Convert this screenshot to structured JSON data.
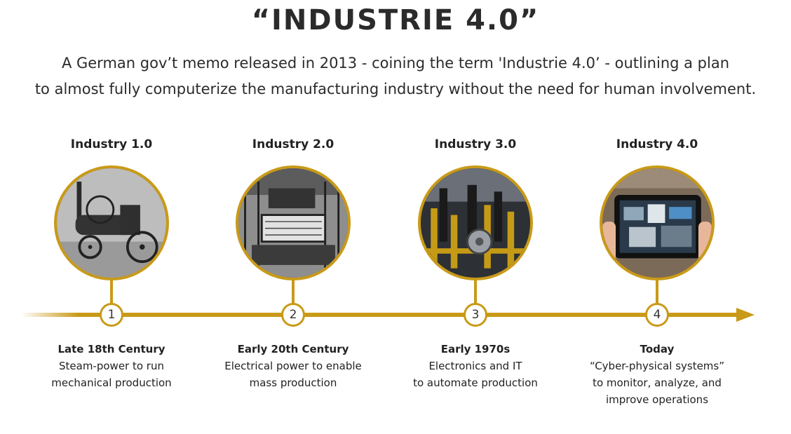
{
  "header": {
    "title": "“INDUSTRIE 4.0”",
    "subtitle_line1": "A German gov’t memo released in 2013 - coining the term 'Industrie 4.0’ - outlining a plan",
    "subtitle_line2": "to almost fully computerize the manufacturing industry without the need for human involvement."
  },
  "colors": {
    "accent": "#c99a18",
    "text": "#2b2b2b"
  },
  "eras": [
    {
      "title": "Industry 1.0",
      "number": "1",
      "image": "steam-engine-image",
      "period": "Late 18th Century",
      "line1": "Steam-power to run",
      "line2": "mechanical production",
      "line3": ""
    },
    {
      "title": "Industry 2.0",
      "number": "2",
      "image": "weaving-loom-image",
      "period": "Early 20th Century",
      "line1": "Electrical power to enable",
      "line2": "mass production",
      "line3": ""
    },
    {
      "title": "Industry 3.0",
      "number": "3",
      "image": "automated-assembly-image",
      "period": "Early 1970s",
      "line1": "Electronics and IT",
      "line2": "to automate production",
      "line3": ""
    },
    {
      "title": "Industry 4.0",
      "number": "4",
      "image": "tablet-control-image",
      "period": "Today",
      "line1": "“Cyber-physical systems”",
      "line2": "to monitor, analyze, and",
      "line3": "improve operations"
    }
  ]
}
